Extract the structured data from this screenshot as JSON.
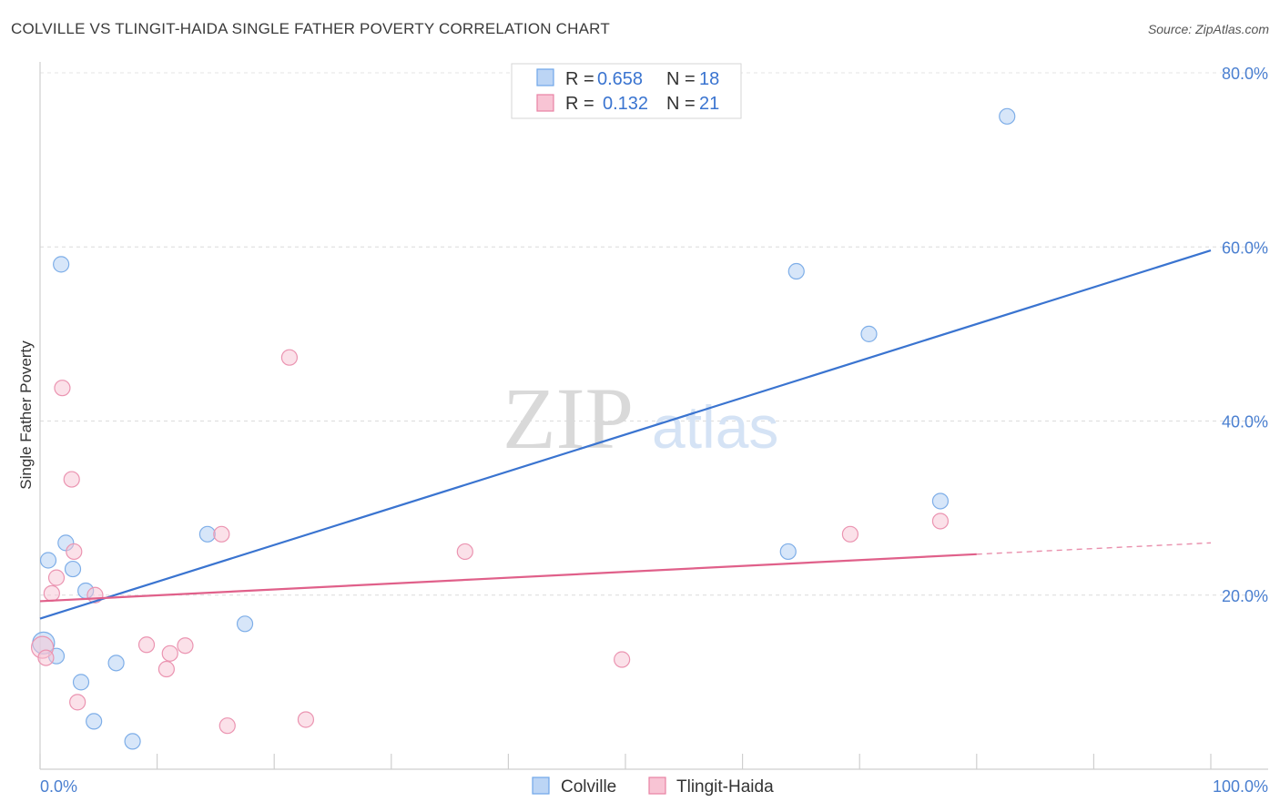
{
  "header": {
    "title": "COLVILLE VS TLINGIT-HAIDA SINGLE FATHER POVERTY CORRELATION CHART",
    "source": "Source: ZipAtlas.com"
  },
  "watermark": {
    "zip": "ZIP",
    "atlas": "atlas"
  },
  "legend": {
    "r_label": "R =",
    "n_label": "N =",
    "series": [
      {
        "name": "Colville",
        "r": "0.658",
        "n": "18",
        "color": "#6fa6e8",
        "fill": "#bcd5f5"
      },
      {
        "name": "Tlingit-Haida",
        "r": "0.132",
        "n": "21",
        "color": "#e882a4",
        "fill": "#f8c4d4"
      }
    ]
  },
  "chart_data": {
    "type": "scatter",
    "title": "COLVILLE VS TLINGIT-HAIDA SINGLE FATHER POVERTY CORRELATION CHART",
    "xlabel": "",
    "ylabel": "Single Father Poverty",
    "xlim": [
      0,
      100
    ],
    "ylim": [
      0,
      80
    ],
    "x_tick_labels": [
      "0.0%",
      "100.0%"
    ],
    "y_ticks": [
      20,
      40,
      60,
      80
    ],
    "y_tick_labels": [
      "20.0%",
      "40.0%",
      "60.0%",
      "80.0%"
    ],
    "grid": true,
    "series": [
      {
        "name": "Colville",
        "color": "#3a74d0",
        "points": [
          [
            0.3,
            14.5
          ],
          [
            0.7,
            24.0
          ],
          [
            1.4,
            13.0
          ],
          [
            1.8,
            58.0
          ],
          [
            2.2,
            26.0
          ],
          [
            2.8,
            23.0
          ],
          [
            3.5,
            10.0
          ],
          [
            3.9,
            20.5
          ],
          [
            4.6,
            5.5
          ],
          [
            6.5,
            12.2
          ],
          [
            7.9,
            3.2
          ],
          [
            14.3,
            27.0
          ],
          [
            17.5,
            16.7
          ],
          [
            63.9,
            25.0
          ],
          [
            64.6,
            57.2
          ],
          [
            70.8,
            50.0
          ],
          [
            76.9,
            30.8
          ],
          [
            82.6,
            75.0
          ]
        ],
        "trend": {
          "x": [
            0,
            100
          ],
          "y": [
            17.3,
            59.6
          ]
        }
      },
      {
        "name": "Tlingit-Haida",
        "color": "#e0608a",
        "points": [
          [
            0.2,
            14.0
          ],
          [
            0.5,
            12.8
          ],
          [
            1.0,
            20.2
          ],
          [
            1.4,
            22.0
          ],
          [
            1.9,
            43.8
          ],
          [
            2.7,
            33.3
          ],
          [
            2.9,
            25.0
          ],
          [
            3.2,
            7.7
          ],
          [
            4.7,
            20.0
          ],
          [
            9.1,
            14.3
          ],
          [
            10.8,
            11.5
          ],
          [
            11.1,
            13.3
          ],
          [
            12.4,
            14.2
          ],
          [
            15.5,
            27.0
          ],
          [
            16.0,
            5.0
          ],
          [
            21.3,
            47.3
          ],
          [
            22.7,
            5.7
          ],
          [
            36.3,
            25.0
          ],
          [
            49.7,
            12.6
          ],
          [
            69.2,
            27.0
          ],
          [
            76.9,
            28.5
          ]
        ],
        "trend": {
          "x": [
            0,
            80
          ],
          "y": [
            19.3,
            24.7
          ]
        },
        "trend_extension": {
          "x": [
            80,
            100
          ],
          "y": [
            24.7,
            26.0
          ]
        }
      }
    ]
  }
}
